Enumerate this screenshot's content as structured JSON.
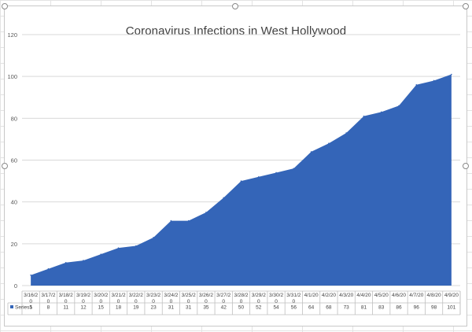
{
  "chart_data": {
    "type": "area",
    "title": "Coronavirus Infections in West Hollywood",
    "xlabel": "",
    "ylabel": "",
    "ylim": [
      0,
      120
    ],
    "yticks": [
      0,
      20,
      40,
      60,
      80,
      100,
      120
    ],
    "grid": true,
    "legend": "data-table",
    "categories": [
      [
        "3/16/2",
        "0"
      ],
      [
        "3/17/2",
        "0"
      ],
      [
        "3/18/2",
        "0"
      ],
      [
        "3/19/2",
        "0"
      ],
      [
        "3/20/2",
        "0"
      ],
      [
        "3/21/2",
        "0"
      ],
      [
        "3/22/2",
        "0"
      ],
      [
        "3/23/2",
        "0"
      ],
      [
        "3/24/2",
        "0"
      ],
      [
        "3/25/2",
        "0"
      ],
      [
        "3/26/2",
        "0"
      ],
      [
        "3/27/2",
        "0"
      ],
      [
        "3/28/2",
        "0"
      ],
      [
        "3/29/2",
        "0"
      ],
      [
        "3/30/2",
        "0"
      ],
      [
        "3/31/2",
        "0"
      ],
      [
        "4/1/20"
      ],
      [
        "4/2/20"
      ],
      [
        "4/3/20"
      ],
      [
        "4/4/20"
      ],
      [
        "4/5/20"
      ],
      [
        "4/6/20"
      ],
      [
        "4/7/20"
      ],
      [
        "4/8/20"
      ],
      [
        "4/9/20"
      ]
    ],
    "series": [
      {
        "name": "Series1",
        "color": "#3465b8",
        "values": [
          5,
          8,
          11,
          12,
          15,
          18,
          19,
          23,
          31,
          31,
          35,
          42,
          50,
          52,
          54,
          56,
          64,
          68,
          73,
          81,
          83,
          86,
          96,
          98,
          101
        ]
      }
    ]
  }
}
